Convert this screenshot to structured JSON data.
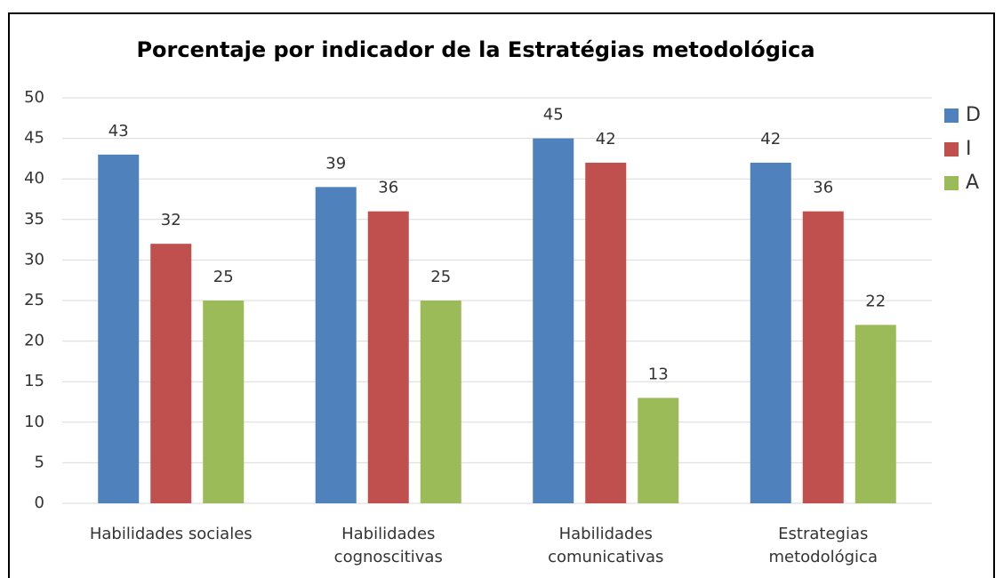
{
  "chart_data": {
    "type": "bar",
    "title": "Porcentaje por indicador de la Estratégias metodológica",
    "categories": [
      "Habilidades sociales",
      "Habilidades cognoscitivas",
      "Habilidades comunicativas",
      "Estrategias metodológica"
    ],
    "series": [
      {
        "name": "D",
        "color": "#4f81bd",
        "values": [
          43,
          39,
          45,
          42
        ]
      },
      {
        "name": "I",
        "color": "#c0504d",
        "values": [
          32,
          36,
          42,
          36
        ]
      },
      {
        "name": "A",
        "color": "#9bbb59",
        "values": [
          25,
          25,
          13,
          22
        ]
      }
    ],
    "ylim": [
      0,
      50
    ],
    "yticks": [
      0,
      5,
      10,
      15,
      20,
      25,
      30,
      35,
      40,
      45,
      50
    ],
    "grid": true,
    "legend": "right"
  }
}
